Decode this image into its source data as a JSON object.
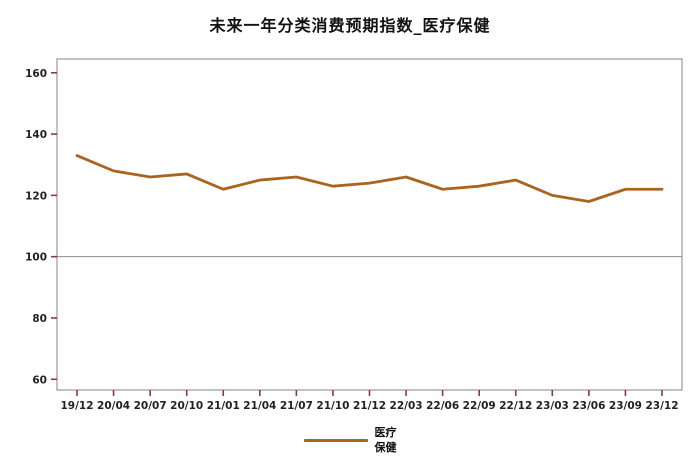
{
  "page": {
    "title": "未来一年分类消费预期指数_医疗保健"
  },
  "legend": {
    "line1": "医疗",
    "line2": "保健"
  },
  "chart_data": {
    "type": "line",
    "title": "未来一年分类消费预期指数_医疗保健",
    "categories": [
      "19/12",
      "20/04",
      "20/07",
      "20/10",
      "21/01",
      "21/04",
      "21/07",
      "21/10",
      "21/12",
      "22/03",
      "22/06",
      "22/09",
      "22/12",
      "23/03",
      "23/06",
      "23/09",
      "23/12"
    ],
    "series": [
      {
        "name": "医疗保健",
        "values": [
          133,
          128,
          126,
          127,
          122,
          125,
          126,
          123,
          124,
          126,
          122,
          123,
          125,
          120,
          118,
          122,
          122
        ]
      }
    ],
    "axis": {
      "y_ticks": [
        60,
        80,
        100,
        120,
        140,
        160
      ],
      "y_range": [
        56.5,
        164.5
      ],
      "ref_line": 100
    },
    "grid": "off",
    "legend_position": "bottom",
    "colors": {
      "line": "#aa641e",
      "tick": "#8b3a3a",
      "frame": "#999999",
      "ref": "#8c8c8c",
      "text": "#222222"
    }
  }
}
